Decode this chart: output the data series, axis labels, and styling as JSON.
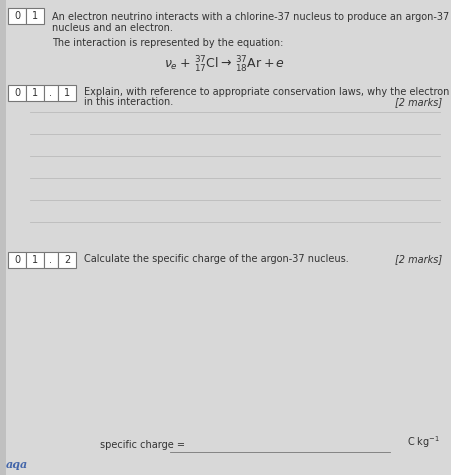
{
  "bg_color": "#d8d8d8",
  "page_bg": "#e8e8e8",
  "text_color": "#333333",
  "border_color": "#777777",
  "line_color": "#bbbbbb",
  "logo_color": "#4466aa",
  "intro_text_1": "An electron neutrino interacts with a chlorine-37 nucleus to produce an argon-37",
  "intro_text_2": "nucleus and an electron.",
  "equation_label": "The interaction is represented by the equation:",
  "equation": "$\\nu_e +\\, ^{37}_{17}\\mathrm{Cl} \\rightarrow\\, ^{37}_{18}\\mathrm{Ar} + e$",
  "q1_text_1": "Explain, with reference to appropriate conservation laws, why the electron is emitted",
  "q1_text_2": "in this interaction.",
  "q1_marks": "[2 marks]",
  "q2_text": "Calculate the specific charge of the argon-37 nucleus.",
  "q2_marks": "[2 marks]",
  "answer_label": "specific charge = ",
  "units_label": "C kg$^{-1}$",
  "n_answer_lines": 6,
  "fontsize": 7.0,
  "fontsize_eq": 9.0
}
